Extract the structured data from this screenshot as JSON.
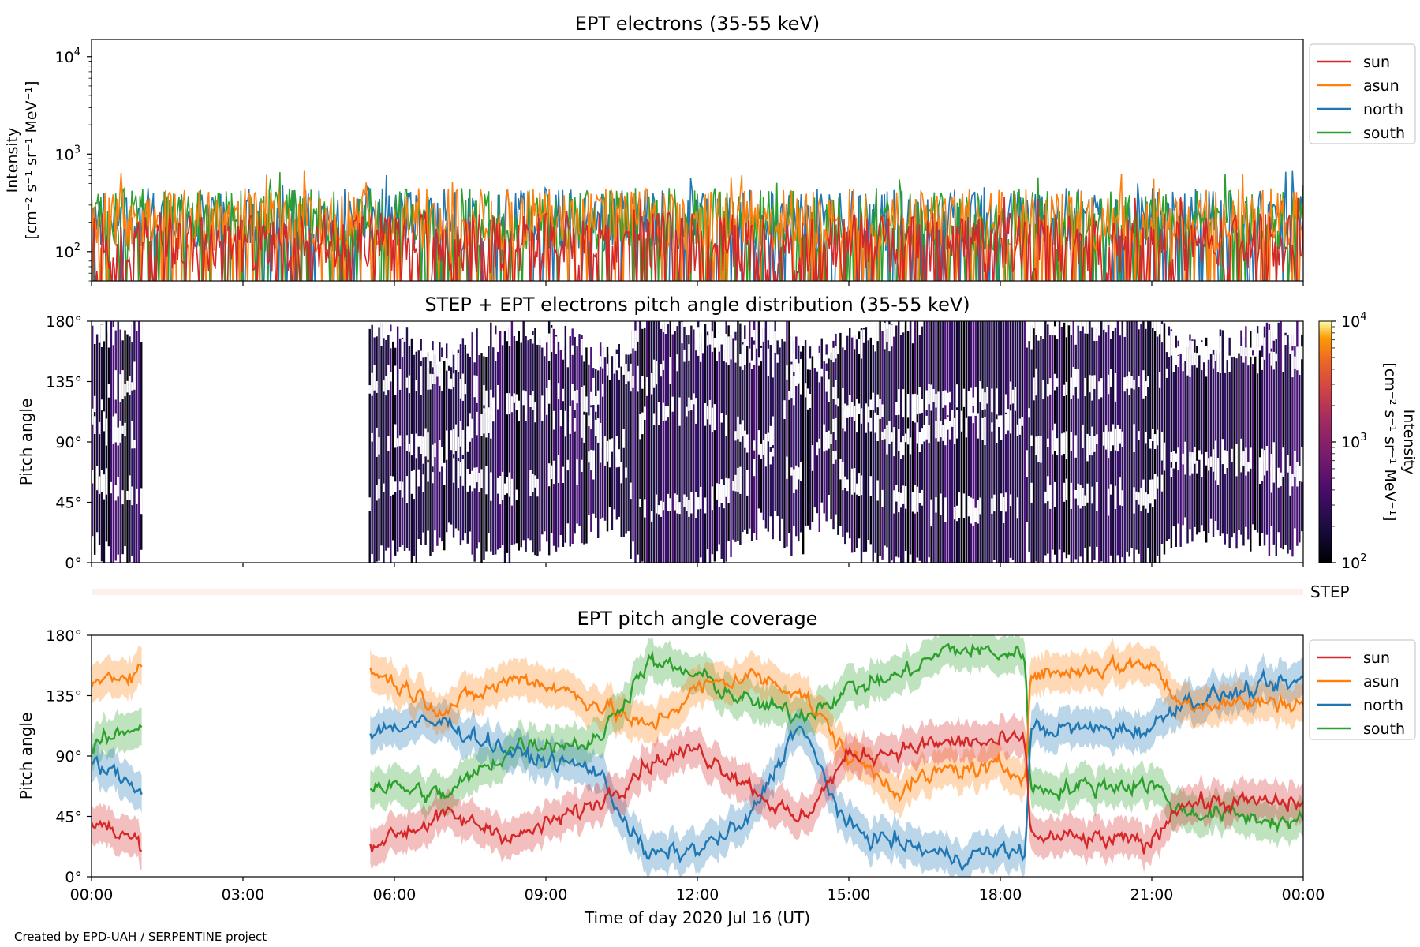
{
  "figure": {
    "footer": "Created by EPD-UAH / SERPENTINE project",
    "xlabel": "Time of day 2020 Jul 16 (UT)",
    "xticks": [
      "00:00",
      "03:00",
      "06:00",
      "09:00",
      "12:00",
      "15:00",
      "18:00",
      "21:00",
      "00:00"
    ],
    "step_strip_label": "STEP"
  },
  "colors": {
    "sun": "#d62728",
    "asun": "#ff7f0e",
    "north": "#1f77b4",
    "south": "#2ca02c",
    "step_strip": "#fdf0e8"
  },
  "chart_data": [
    {
      "type": "line",
      "title": "EPT electrons (35-55 keV)",
      "ylabel_line1": "Intensity",
      "ylabel_line2": "[cm⁻² s⁻¹ sr⁻¹ MeV⁻¹]",
      "yscale": "log",
      "ylim": [
        50,
        15000
      ],
      "yticks": [
        {
          "value": 100,
          "base": "10",
          "exp": "2"
        },
        {
          "value": 1000,
          "base": "10",
          "exp": "3"
        },
        {
          "value": 10000,
          "base": "10",
          "exp": "4"
        }
      ],
      "xlim_hours": [
        0,
        24
      ],
      "legend": [
        "sun",
        "asun",
        "north",
        "south"
      ],
      "legend_position": "outside-right",
      "series": [
        {
          "name": "sun",
          "typical_range": [
            60,
            250
          ]
        },
        {
          "name": "asun",
          "typical_range": [
            100,
            450
          ]
        },
        {
          "name": "north",
          "typical_range": [
            100,
            450
          ]
        },
        {
          "name": "south",
          "typical_range": [
            100,
            450
          ]
        }
      ]
    },
    {
      "type": "heatmap",
      "title": "STEP + EPT electrons pitch angle distribution (35-55 keV)",
      "ylabel": "Pitch angle",
      "ylim": [
        0,
        180
      ],
      "yticks": [
        "0°",
        "45°",
        "90°",
        "135°",
        "180°"
      ],
      "xlim_hours": [
        0,
        24
      ],
      "data_gaps_hours": [
        [
          1.0,
          5.5
        ]
      ],
      "colorbar": {
        "scale": "log",
        "range": [
          100,
          10000
        ],
        "ticks": [
          {
            "base": "10",
            "exp": "2"
          },
          {
            "base": "10",
            "exp": "3"
          },
          {
            "base": "10",
            "exp": "4"
          }
        ],
        "label_line1": "Intensity",
        "label_line2": "[cm⁻² s⁻¹ sr⁻¹ MeV⁻¹]"
      }
    },
    {
      "type": "line",
      "title": "EPT pitch angle coverage",
      "ylabel": "Pitch angle",
      "ylim": [
        0,
        180
      ],
      "yticks": [
        "0°",
        "45°",
        "90°",
        "135°",
        "180°"
      ],
      "xlim_hours": [
        0,
        24
      ],
      "legend": [
        "sun",
        "asun",
        "north",
        "south"
      ],
      "legend_position": "outside-right",
      "data_gaps_hours": [
        [
          1.0,
          5.5
        ]
      ],
      "series": [
        {
          "name": "sun",
          "x": [
            0,
            1,
            5.5,
            7,
            8.5,
            10,
            11,
            12,
            13,
            14,
            15,
            16,
            17,
            18.5,
            18.6,
            21,
            21.5,
            24
          ],
          "y": [
            40,
            25,
            25,
            45,
            30,
            55,
            85,
            95,
            70,
            40,
            90,
            95,
            100,
            100,
            30,
            25,
            55,
            55
          ]
        },
        {
          "name": "asun",
          "x": [
            0,
            1,
            5.5,
            7,
            8.5,
            10,
            11,
            12,
            13,
            14,
            15,
            16,
            17,
            18.5,
            18.6,
            21,
            21.5,
            24
          ],
          "y": [
            145,
            155,
            155,
            125,
            150,
            130,
            110,
            140,
            150,
            140,
            90,
            65,
            80,
            80,
            150,
            160,
            130,
            130
          ]
        },
        {
          "name": "north",
          "x": [
            0,
            1,
            5.5,
            7,
            8.5,
            10,
            11,
            12,
            13,
            14,
            15,
            16,
            17,
            18.5,
            18.6,
            21,
            21.5,
            24
          ],
          "y": [
            85,
            65,
            110,
            115,
            90,
            80,
            15,
            20,
            40,
            115,
            35,
            25,
            15,
            20,
            110,
            110,
            130,
            145
          ]
        },
        {
          "name": "south",
          "x": [
            0,
            1,
            5.5,
            7,
            8.5,
            10,
            11,
            12,
            13,
            14,
            15,
            16,
            17,
            18.5,
            18.6,
            21,
            21.5,
            24
          ],
          "y": [
            95,
            115,
            70,
            60,
            100,
            100,
            160,
            150,
            130,
            120,
            140,
            150,
            170,
            165,
            65,
            70,
            50,
            40
          ]
        }
      ]
    }
  ]
}
